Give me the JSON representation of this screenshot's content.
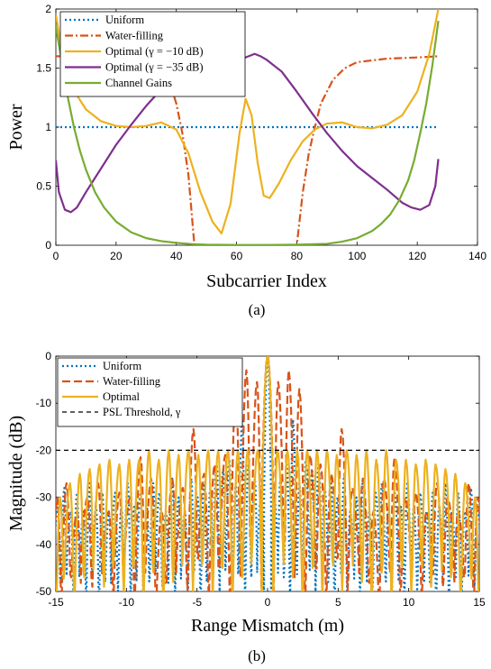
{
  "chart_data": [
    {
      "type": "line",
      "caption": "(a)",
      "xlabel": "Subcarrier Index",
      "ylabel": "Power",
      "xlim": [
        0,
        140
      ],
      "ylim": [
        0,
        2
      ],
      "xticks": [
        "0",
        "20",
        "40",
        "60",
        "80",
        "100",
        "120",
        "140"
      ],
      "yticks": [
        "0",
        "0.5",
        "1",
        "1.5",
        "2"
      ],
      "legend_position": "top-left",
      "series": [
        {
          "name": "Uniform",
          "color": "#0072BD",
          "style": "dotted",
          "x": [
            0,
            127
          ],
          "y": [
            1,
            1
          ]
        },
        {
          "name": "Water-filling",
          "color": "#D95319",
          "style": "dashdot",
          "x": [
            0,
            10,
            20,
            25,
            30,
            35,
            38,
            40,
            42,
            44,
            46,
            48,
            52,
            56,
            60,
            64,
            68,
            72,
            76,
            80,
            82,
            84,
            86,
            88,
            92,
            96,
            100,
            110,
            120,
            127
          ],
          "y": [
            1.6,
            1.6,
            1.6,
            1.59,
            1.56,
            1.47,
            1.36,
            1.2,
            0.95,
            0.6,
            0,
            0,
            0,
            0,
            0,
            0,
            0,
            0,
            0,
            0,
            0.45,
            0.78,
            1.0,
            1.2,
            1.4,
            1.5,
            1.55,
            1.58,
            1.59,
            1.6
          ]
        },
        {
          "name": "Optimal (γ = −10 dB)",
          "color": "#EDB120",
          "style": "solid",
          "x": [
            0,
            2,
            5,
            10,
            15,
            20,
            25,
            30,
            35,
            40,
            44,
            48,
            52,
            55,
            58,
            61,
            63,
            65,
            67,
            69,
            71,
            74,
            78,
            82,
            86,
            90,
            95,
            100,
            105,
            110,
            115,
            120,
            124,
            127
          ],
          "y": [
            1.95,
            1.65,
            1.35,
            1.15,
            1.05,
            1.01,
            1.0,
            1.01,
            1.04,
            0.98,
            0.78,
            0.45,
            0.2,
            0.1,
            0.35,
            0.95,
            1.24,
            1.1,
            0.7,
            0.42,
            0.4,
            0.52,
            0.72,
            0.88,
            0.98,
            1.03,
            1.04,
            1.0,
            0.99,
            1.02,
            1.1,
            1.3,
            1.62,
            2.0
          ]
        },
        {
          "name": "Optimal (γ = −35 dB)",
          "color": "#7E2F8E",
          "style": "solid",
          "x": [
            0,
            1,
            3,
            5,
            7,
            10,
            15,
            20,
            25,
            30,
            35,
            40,
            45,
            50,
            55,
            58,
            62,
            64,
            66,
            68,
            70,
            75,
            80,
            85,
            90,
            95,
            100,
            105,
            110,
            115,
            118,
            121,
            124,
            126,
            127
          ],
          "y": [
            0.72,
            0.45,
            0.3,
            0.28,
            0.32,
            0.45,
            0.65,
            0.85,
            1.02,
            1.18,
            1.32,
            1.45,
            1.52,
            1.57,
            1.6,
            1.6,
            1.58,
            1.6,
            1.62,
            1.6,
            1.57,
            1.47,
            1.3,
            1.12,
            0.95,
            0.8,
            0.67,
            0.57,
            0.47,
            0.36,
            0.32,
            0.3,
            0.34,
            0.5,
            0.73
          ]
        },
        {
          "name": "Channel Gains",
          "color": "#77AC30",
          "style": "solid",
          "x": [
            0,
            2,
            4,
            6,
            8,
            10,
            13,
            16,
            20,
            25,
            30,
            35,
            40,
            45,
            50,
            60,
            70,
            80,
            90,
            95,
            100,
            105,
            108,
            111,
            114,
            117,
            119,
            121,
            123,
            125,
            127
          ],
          "y": [
            1.85,
            1.55,
            1.25,
            1.0,
            0.8,
            0.64,
            0.45,
            0.32,
            0.2,
            0.11,
            0.06,
            0.035,
            0.02,
            0.01,
            0.005,
            0.002,
            0.002,
            0.005,
            0.012,
            0.03,
            0.06,
            0.12,
            0.18,
            0.26,
            0.38,
            0.55,
            0.72,
            0.95,
            1.2,
            1.52,
            1.9
          ]
        }
      ]
    },
    {
      "type": "line",
      "caption": "(b)",
      "xlabel": "Range Mismatch (m)",
      "ylabel": "Magnitude (dB)",
      "xlim": [
        -15,
        15
      ],
      "ylim": [
        -50,
        0
      ],
      "xticks": [
        "-15",
        "-10",
        "-5",
        "0",
        "5",
        "10",
        "15"
      ],
      "yticks": [
        "0",
        "-10",
        "-20",
        "-30",
        "-40",
        "-50"
      ],
      "legend_position": "top-left",
      "series": [
        {
          "name": "Uniform",
          "color": "#0072BD",
          "style": "dotted",
          "mainlobe": 0,
          "peaks": [
            [
              0.45,
              -29
            ],
            [
              0.9,
              -26
            ],
            [
              1.35,
              -23
            ],
            [
              1.8,
              -13.5
            ],
            [
              2.25,
              -27
            ],
            [
              2.7,
              -22
            ],
            [
              3.15,
              -24
            ],
            [
              3.6,
              -23
            ],
            [
              4.05,
              -28
            ],
            [
              4.5,
              -27
            ],
            [
              4.95,
              -30
            ],
            [
              5.4,
              -26
            ],
            [
              5.85,
              -33
            ],
            [
              6.3,
              -30
            ],
            [
              6.75,
              -26
            ],
            [
              7.2,
              -33
            ],
            [
              7.65,
              -29
            ],
            [
              8.1,
              -27
            ],
            [
              8.55,
              -32
            ],
            [
              9.0,
              -29
            ],
            [
              9.45,
              -32
            ],
            [
              9.9,
              -27
            ],
            [
              10.35,
              -32
            ],
            [
              10.8,
              -29
            ],
            [
              11.25,
              -33
            ],
            [
              11.7,
              -29
            ],
            [
              12.15,
              -32
            ],
            [
              12.6,
              -27
            ],
            [
              13.05,
              -33
            ],
            [
              13.5,
              -29
            ],
            [
              13.95,
              -33
            ],
            [
              14.4,
              -28
            ],
            [
              14.85,
              -32
            ]
          ]
        },
        {
          "name": "Water-filling",
          "color": "#D95319",
          "style": "dashdash",
          "mainlobe": 0,
          "peaks": [
            [
              0.75,
              -5.5
            ],
            [
              1.5,
              -3
            ],
            [
              2.25,
              -7
            ],
            [
              3.0,
              -21
            ],
            [
              3.75,
              -23
            ],
            [
              4.5,
              -25
            ],
            [
              5.25,
              -15.5
            ],
            [
              6.0,
              -28
            ],
            [
              6.75,
              -26
            ],
            [
              7.5,
              -33
            ],
            [
              8.25,
              -26
            ],
            [
              9.0,
              -21.5
            ],
            [
              9.75,
              -30
            ],
            [
              10.5,
              -29
            ],
            [
              11.25,
              -33
            ],
            [
              12.0,
              -27
            ],
            [
              12.75,
              -30
            ],
            [
              13.5,
              -33
            ],
            [
              14.25,
              -27
            ],
            [
              14.9,
              -30
            ]
          ]
        },
        {
          "name": "Optimal",
          "color": "#EDB120",
          "style": "solid",
          "mainlobe": 0,
          "peaks": [
            [
              0.7,
              -20
            ],
            [
              1.4,
              -20
            ],
            [
              2.1,
              -20
            ],
            [
              2.8,
              -20
            ],
            [
              3.5,
              -20
            ],
            [
              4.2,
              -20
            ],
            [
              4.9,
              -21
            ],
            [
              5.6,
              -20
            ],
            [
              6.3,
              -21
            ],
            [
              7.0,
              -20
            ],
            [
              7.7,
              -22
            ],
            [
              8.4,
              -20
            ],
            [
              9.1,
              -22
            ],
            [
              9.8,
              -22
            ],
            [
              10.5,
              -23
            ],
            [
              11.2,
              -22
            ],
            [
              11.9,
              -23
            ],
            [
              12.6,
              -24
            ],
            [
              13.3,
              -25
            ],
            [
              14.0,
              -27
            ],
            [
              14.7,
              -30
            ]
          ]
        },
        {
          "name": "PSL Threshold, γ",
          "color": "#000000",
          "style": "dashed",
          "x": [
            -15,
            15
          ],
          "y": [
            -20,
            -20
          ]
        }
      ]
    }
  ]
}
